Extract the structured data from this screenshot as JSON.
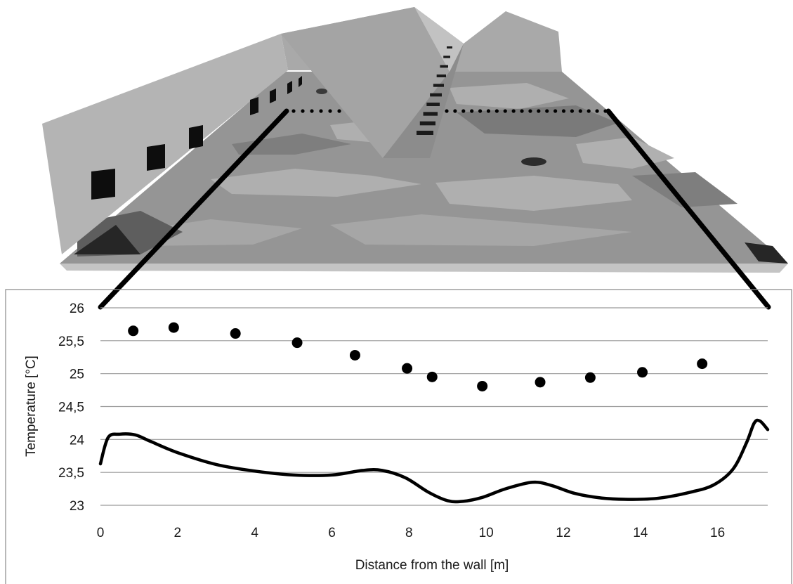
{
  "chart_data": {
    "type": "scatter",
    "xlabel": "Distance from the wall [m]",
    "ylabel": "Temperature [°C]",
    "xlim": [
      0,
      17.3
    ],
    "ylim": [
      23,
      26
    ],
    "x_ticks": [
      0,
      2,
      4,
      6,
      8,
      10,
      12,
      14,
      16
    ],
    "x_tick_labels": [
      "0",
      "2",
      "4",
      "6",
      "8",
      "10",
      "12",
      "14",
      "16"
    ],
    "y_ticks": [
      23,
      23.5,
      24,
      24.5,
      25,
      25.5,
      26
    ],
    "y_tick_labels": [
      "23",
      "23,5",
      "24",
      "24,5",
      "25",
      "25,5",
      "26"
    ],
    "grid": "horizontal",
    "series": [
      {
        "type": "scatter",
        "color": "#000000",
        "x": [
          0.85,
          1.9,
          3.5,
          5.1,
          6.6,
          7.95,
          8.6,
          9.9,
          11.4,
          12.7,
          14.05,
          15.6
        ],
        "y": [
          25.65,
          25.7,
          25.61,
          25.47,
          25.28,
          25.08,
          24.95,
          24.81,
          24.87,
          24.94,
          25.02,
          25.15
        ]
      },
      {
        "type": "line",
        "color": "#000000",
        "x": [
          0,
          0.2,
          0.5,
          0.9,
          1.3,
          2.0,
          3.0,
          4.0,
          5.0,
          6.0,
          6.8,
          7.3,
          7.9,
          8.5,
          9.0,
          9.4,
          9.9,
          10.5,
          11.2,
          11.7,
          12.3,
          13.0,
          13.8,
          14.5,
          15.3,
          15.9,
          16.4,
          16.75,
          16.95,
          17.1,
          17.3
        ],
        "y": [
          23.63,
          24.03,
          24.08,
          24.07,
          23.97,
          23.8,
          23.62,
          23.52,
          23.46,
          23.46,
          23.53,
          23.53,
          23.42,
          23.2,
          23.07,
          23.06,
          23.12,
          23.25,
          23.35,
          23.3,
          23.18,
          23.11,
          23.09,
          23.11,
          23.2,
          23.31,
          23.55,
          23.95,
          24.25,
          24.28,
          24.15
        ]
      }
    ]
  },
  "scene": {
    "colors": {
      "wall": "#b4b4b4",
      "divider": "#9c9c9c",
      "floor_base": "#959595",
      "floor_light": "#afafaf",
      "floor_dark": "#6f6f6f",
      "floor_darkest": "#262626",
      "window": "#0d0d0d",
      "leader_line": "#000000",
      "gridline": "#9a9a9a",
      "frame": "#8a8a8a"
    },
    "window_count": 7,
    "floor_dot_count": 26,
    "center_dash_count": 10
  }
}
